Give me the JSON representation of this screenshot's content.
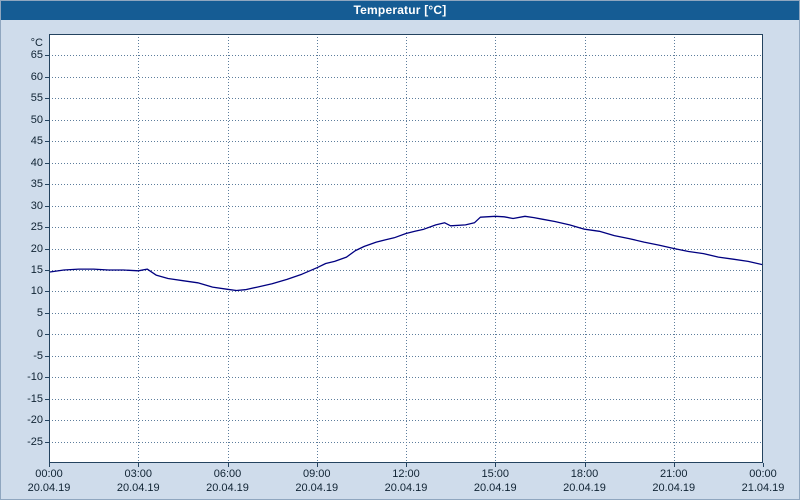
{
  "window": {
    "title": "Temperatur [°C]"
  },
  "colors": {
    "titlebar": "#155c94",
    "titlebar_text": "#ffffff",
    "background": "#cfdceb",
    "plot_background": "#ffffff",
    "plot_border": "#24435f",
    "grid": "#5d7d9c",
    "axis_text": "#102333",
    "line": "#000080"
  },
  "chart_data": {
    "type": "line",
    "title": "Temperatur [°C]",
    "xlabel": "",
    "ylabel": "°C",
    "ylim": [
      -30,
      70
    ],
    "xlim": [
      0,
      24
    ],
    "grid": true,
    "legend_position": "none",
    "y_ticks": [
      -25,
      -20,
      -15,
      -10,
      -5,
      0,
      5,
      10,
      15,
      20,
      25,
      30,
      35,
      40,
      45,
      50,
      55,
      60,
      65
    ],
    "x_ticks": [
      {
        "hour": 0,
        "time": "00:00",
        "date": "20.04.19"
      },
      {
        "hour": 3,
        "time": "03:00",
        "date": "20.04.19"
      },
      {
        "hour": 6,
        "time": "06:00",
        "date": "20.04.19"
      },
      {
        "hour": 9,
        "time": "09:00",
        "date": "20.04.19"
      },
      {
        "hour": 12,
        "time": "12:00",
        "date": "20.04.19"
      },
      {
        "hour": 15,
        "time": "15:00",
        "date": "20.04.19"
      },
      {
        "hour": 18,
        "time": "18:00",
        "date": "20.04.19"
      },
      {
        "hour": 21,
        "time": "21:00",
        "date": "20.04.19"
      },
      {
        "hour": 24,
        "time": "00:00",
        "date": "21.04.19"
      }
    ],
    "series": [
      {
        "name": "Temperatur",
        "color": "#000080",
        "x": [
          0,
          0.5,
          1,
          1.5,
          2,
          2.5,
          3,
          3.3,
          3.6,
          4,
          4.5,
          5,
          5.5,
          6,
          6.3,
          6.6,
          7,
          7.5,
          8,
          8.5,
          9,
          9.3,
          9.6,
          10,
          10.3,
          10.6,
          11,
          11.3,
          11.6,
          12,
          12.3,
          12.6,
          13,
          13.3,
          13.5,
          14,
          14.3,
          14.5,
          15,
          15.3,
          15.6,
          16,
          16.3,
          16.6,
          17,
          17.5,
          18,
          18.5,
          19,
          19.5,
          20,
          20.5,
          21,
          21.5,
          22,
          22.5,
          23,
          23.5,
          24
        ],
        "y": [
          14.5,
          15,
          15.2,
          15.2,
          15,
          15,
          14.8,
          15.2,
          13.8,
          13,
          12.5,
          12,
          11,
          10.5,
          10.2,
          10.4,
          11,
          11.8,
          12.8,
          14,
          15.5,
          16.5,
          17,
          18,
          19.5,
          20.5,
          21.5,
          22,
          22.5,
          23.5,
          24,
          24.5,
          25.5,
          26,
          25.3,
          25.5,
          26,
          27.3,
          27.5,
          27.4,
          27,
          27.5,
          27.2,
          26.8,
          26.3,
          25.5,
          24.5,
          24,
          23,
          22.3,
          21.5,
          20.8,
          20,
          19.3,
          18.8,
          18,
          17.5,
          17,
          16.2
        ]
      }
    ]
  }
}
